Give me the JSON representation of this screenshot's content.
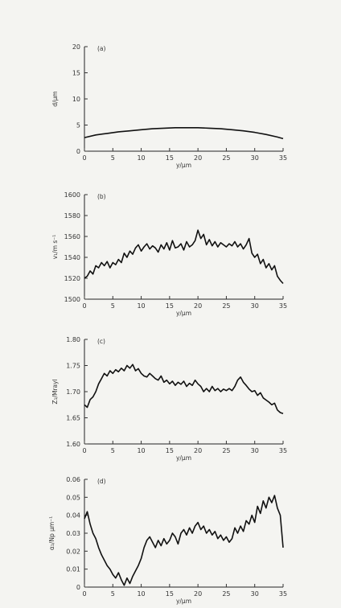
{
  "chart_data": [
    {
      "type": "line",
      "panel_label": "(a)",
      "xlabel": "y/μm",
      "ylabel": "d/μm",
      "xlim": [
        0,
        35
      ],
      "ylim": [
        0,
        20
      ],
      "xticks": [
        "0",
        "5",
        "10",
        "15",
        "20",
        "25",
        "30",
        "35"
      ],
      "yticks": [
        "0",
        "5",
        "10",
        "15",
        "20"
      ],
      "grid": false,
      "series": [
        {
          "x": [
            0,
            2,
            4,
            6,
            8,
            10,
            12,
            14,
            16,
            18,
            20,
            22,
            24,
            26,
            28,
            30,
            32,
            34,
            35
          ],
          "y": [
            2.6,
            3.1,
            3.4,
            3.7,
            3.9,
            4.1,
            4.3,
            4.4,
            4.5,
            4.5,
            4.5,
            4.4,
            4.3,
            4.1,
            3.9,
            3.6,
            3.2,
            2.7,
            2.4
          ]
        }
      ]
    },
    {
      "type": "line",
      "panel_label": "(b)",
      "xlabel": "y/μm",
      "ylabel": "v₁/m s⁻¹",
      "xlim": [
        0,
        35
      ],
      "ylim": [
        1500,
        1600
      ],
      "xticks": [
        "0",
        "5",
        "10",
        "15",
        "20",
        "25",
        "30",
        "35"
      ],
      "yticks": [
        "1500",
        "1520",
        "1540",
        "1560",
        "1580",
        "1600"
      ],
      "grid": false,
      "series": [
        {
          "x": [
            0,
            0.5,
            1,
            1.5,
            2,
            2.5,
            3,
            3.5,
            4,
            4.5,
            5,
            5.5,
            6,
            6.5,
            7,
            7.5,
            8,
            8.5,
            9,
            9.5,
            10,
            10.5,
            11,
            11.5,
            12,
            12.5,
            13,
            13.5,
            14,
            14.5,
            15,
            15.5,
            16,
            16.5,
            17,
            17.5,
            18,
            18.5,
            19,
            19.5,
            20,
            20.5,
            21,
            21.5,
            22,
            22.5,
            23,
            23.5,
            24,
            24.5,
            25,
            25.5,
            26,
            26.5,
            27,
            27.5,
            28,
            28.5,
            29,
            29.5,
            30,
            30.5,
            31,
            31.5,
            32,
            32.5,
            33,
            33.5,
            34,
            34.5,
            35
          ],
          "y": [
            1520,
            1522,
            1527,
            1524,
            1532,
            1530,
            1535,
            1532,
            1536,
            1530,
            1535,
            1533,
            1538,
            1535,
            1544,
            1540,
            1546,
            1543,
            1549,
            1552,
            1546,
            1550,
            1553,
            1548,
            1551,
            1549,
            1545,
            1552,
            1548,
            1554,
            1547,
            1556,
            1549,
            1550,
            1553,
            1547,
            1555,
            1550,
            1552,
            1556,
            1566,
            1558,
            1562,
            1552,
            1557,
            1551,
            1555,
            1550,
            1554,
            1552,
            1550,
            1553,
            1551,
            1555,
            1550,
            1553,
            1548,
            1552,
            1558,
            1544,
            1540,
            1543,
            1534,
            1538,
            1530,
            1534,
            1528,
            1532,
            1522,
            1518,
            1515
          ]
        }
      ]
    },
    {
      "type": "line",
      "panel_label": "(c)",
      "xlabel": "y/μm",
      "ylabel": "Z₁/Mrayl",
      "xlim": [
        0,
        35
      ],
      "ylim": [
        1.6,
        1.8
      ],
      "xticks": [
        "0",
        "5",
        "10",
        "15",
        "20",
        "25",
        "30",
        "35"
      ],
      "yticks": [
        "1.60",
        "1.65",
        "1.70",
        "1.75",
        "1.80"
      ],
      "grid": false,
      "series": [
        {
          "x": [
            0,
            0.5,
            1,
            1.5,
            2,
            2.5,
            3,
            3.5,
            4,
            4.5,
            5,
            5.5,
            6,
            6.5,
            7,
            7.5,
            8,
            8.5,
            9,
            9.5,
            10,
            10.5,
            11,
            11.5,
            12,
            12.5,
            13,
            13.5,
            14,
            14.5,
            15,
            15.5,
            16,
            16.5,
            17,
            17.5,
            18,
            18.5,
            19,
            19.5,
            20,
            20.5,
            21,
            21.5,
            22,
            22.5,
            23,
            23.5,
            24,
            24.5,
            25,
            25.5,
            26,
            26.5,
            27,
            27.5,
            28,
            28.5,
            29,
            29.5,
            30,
            30.5,
            31,
            31.5,
            32,
            32.5,
            33,
            33.5,
            34,
            34.5,
            35
          ],
          "y": [
            1.675,
            1.67,
            1.685,
            1.69,
            1.7,
            1.715,
            1.725,
            1.735,
            1.73,
            1.74,
            1.735,
            1.742,
            1.738,
            1.745,
            1.74,
            1.75,
            1.745,
            1.752,
            1.74,
            1.744,
            1.735,
            1.73,
            1.728,
            1.735,
            1.73,
            1.725,
            1.722,
            1.73,
            1.718,
            1.722,
            1.715,
            1.72,
            1.712,
            1.718,
            1.714,
            1.72,
            1.71,
            1.716,
            1.712,
            1.722,
            1.715,
            1.71,
            1.7,
            1.706,
            1.7,
            1.71,
            1.702,
            1.706,
            1.7,
            1.705,
            1.702,
            1.706,
            1.702,
            1.71,
            1.722,
            1.728,
            1.718,
            1.712,
            1.705,
            1.7,
            1.702,
            1.693,
            1.698,
            1.688,
            1.684,
            1.68,
            1.675,
            1.678,
            1.665,
            1.66,
            1.658
          ]
        }
      ]
    },
    {
      "type": "line",
      "panel_label": "(d)",
      "xlabel": "y/μm",
      "ylabel": "α₁/Np μm⁻¹",
      "xlim": [
        0,
        35
      ],
      "ylim": [
        0,
        0.06
      ],
      "xticks": [
        "0",
        "5",
        "10",
        "15",
        "20",
        "25",
        "30",
        "35"
      ],
      "yticks": [
        "0",
        "0.01",
        "0.02",
        "0.03",
        "0.04",
        "0.05",
        "0.06"
      ],
      "grid": false,
      "series": [
        {
          "x": [
            0,
            0.5,
            1,
            1.5,
            2,
            2.5,
            3,
            3.5,
            4,
            4.5,
            5,
            5.5,
            6,
            6.5,
            7,
            7.5,
            8,
            8.5,
            9,
            9.5,
            10,
            10.5,
            11,
            11.5,
            12,
            12.5,
            13,
            13.5,
            14,
            14.5,
            15,
            15.5,
            16,
            16.5,
            17,
            17.5,
            18,
            18.5,
            19,
            19.5,
            20,
            20.5,
            21,
            21.5,
            22,
            22.5,
            23,
            23.5,
            24,
            24.5,
            25,
            25.5,
            26,
            26.5,
            27,
            27.5,
            28,
            28.5,
            29,
            29.5,
            30,
            30.5,
            31,
            31.5,
            32,
            32.5,
            33,
            33.5,
            34,
            34.5,
            35
          ],
          "y": [
            0.038,
            0.042,
            0.035,
            0.03,
            0.027,
            0.022,
            0.018,
            0.015,
            0.012,
            0.01,
            0.007,
            0.005,
            0.008,
            0.004,
            0.001,
            0.005,
            0.002,
            0.006,
            0.009,
            0.012,
            0.016,
            0.022,
            0.026,
            0.028,
            0.025,
            0.022,
            0.026,
            0.023,
            0.027,
            0.024,
            0.026,
            0.03,
            0.028,
            0.024,
            0.03,
            0.032,
            0.029,
            0.033,
            0.03,
            0.034,
            0.036,
            0.032,
            0.034,
            0.03,
            0.032,
            0.029,
            0.031,
            0.027,
            0.029,
            0.026,
            0.028,
            0.025,
            0.027,
            0.033,
            0.03,
            0.034,
            0.031,
            0.037,
            0.035,
            0.04,
            0.036,
            0.045,
            0.041,
            0.048,
            0.044,
            0.05,
            0.047,
            0.051,
            0.044,
            0.04,
            0.022
          ]
        }
      ]
    }
  ]
}
